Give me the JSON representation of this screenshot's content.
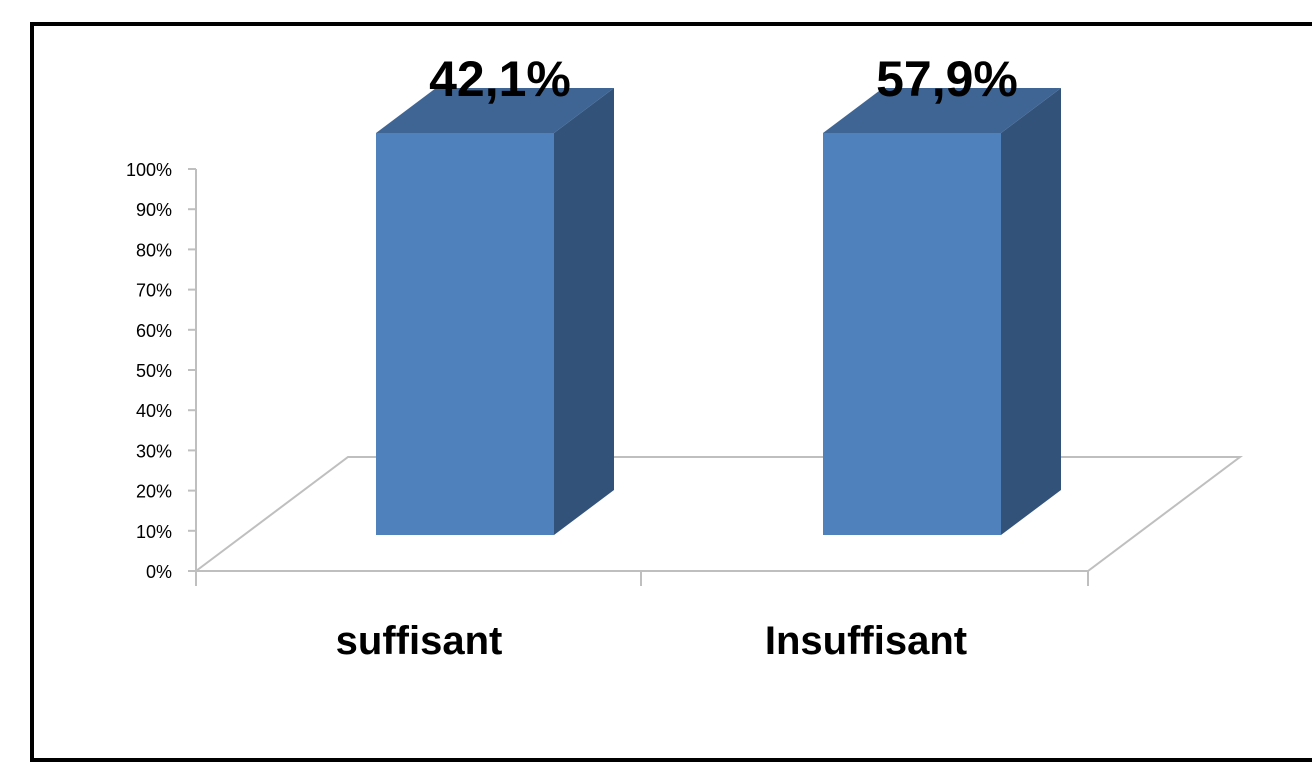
{
  "chart_data": {
    "type": "bar",
    "categories": [
      "suffisant",
      "Insuffisant"
    ],
    "values": [
      42.1,
      57.9
    ],
    "data_labels": [
      "42,1%",
      "57,9%"
    ],
    "y_ticks": [
      "0%",
      "10%",
      "20%",
      "30%",
      "40%",
      "50%",
      "60%",
      "70%",
      "80%",
      "90%",
      "100%"
    ],
    "ylim": [
      0,
      100
    ],
    "title": "",
    "xlabel": "",
    "ylabel": "",
    "grid": false,
    "style": "3d",
    "colors": {
      "bar_front": "#4F81BD",
      "bar_side": "#33527A",
      "bar_top": "#3E6594",
      "axis": "#BFBFBF"
    }
  }
}
